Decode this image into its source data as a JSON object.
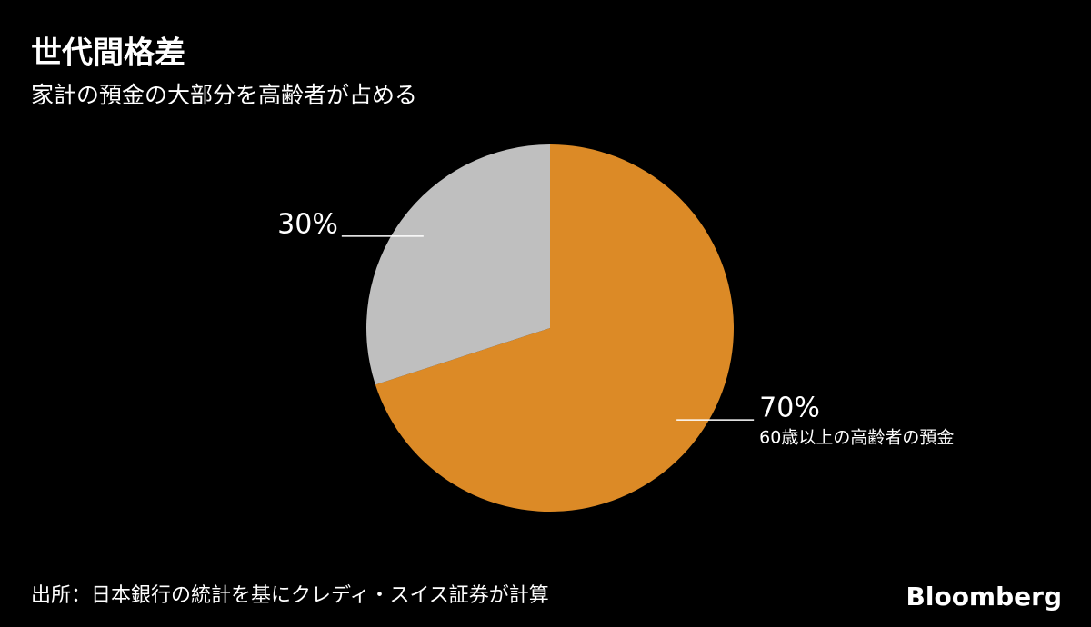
{
  "chart_data": {
    "type": "pie",
    "title": "世代間格差",
    "subtitle": "家計の預金の大部分を高齢者が占める",
    "categories": [
      "60歳以上の高齢者の預金",
      null
    ],
    "values": [
      70,
      30
    ],
    "value_labels": [
      "70%",
      "30%"
    ],
    "colors": [
      "#dc8a26",
      "#bfbfbf"
    ],
    "source": "出所：日本銀行の統計を基にクレディ・スイス証券が計算",
    "logo": "Bloomberg"
  }
}
